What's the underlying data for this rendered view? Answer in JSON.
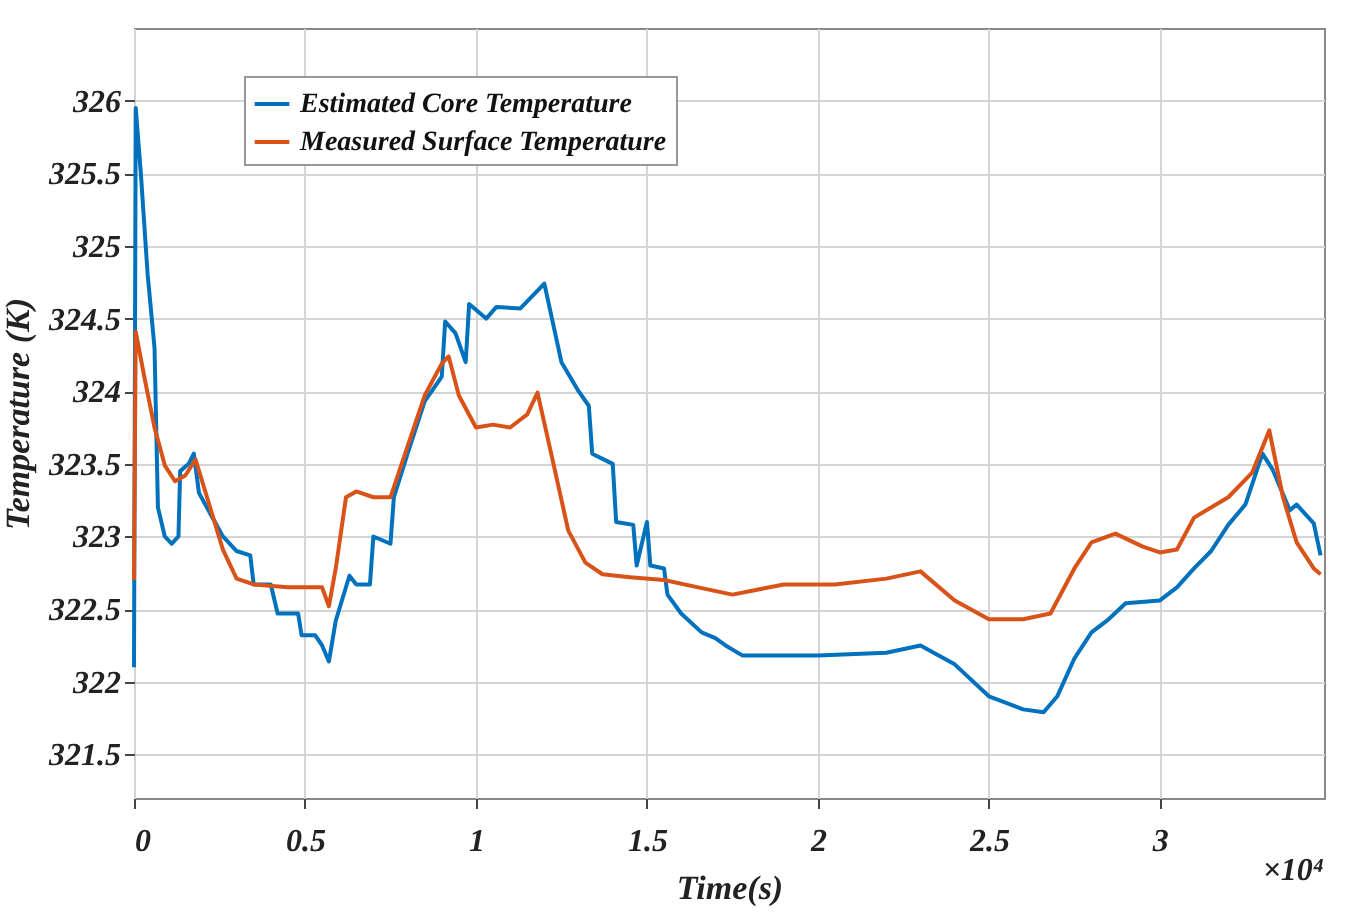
{
  "chart_data": {
    "type": "line",
    "xlabel": "Time(s)",
    "ylabel": "Temperature (K)",
    "annotations": [
      "×10⁴"
    ],
    "xlim": [
      0,
      3.48
    ],
    "ylim": [
      321.2,
      326.5
    ],
    "xticks": [
      0,
      0.5,
      1,
      1.5,
      2,
      2.5,
      3
    ],
    "yticks": [
      321.5,
      322,
      322.5,
      323,
      323.5,
      324,
      324.5,
      325,
      325.5,
      326
    ],
    "grid": true,
    "legend": "top left",
    "line_style": "solid",
    "marker": "none",
    "series": [
      {
        "name": "Estimated Core Temperature",
        "color": "#0072bd",
        "x": [
          0,
          0.005,
          0.02,
          0.04,
          0.06,
          0.07,
          0.09,
          0.11,
          0.13,
          0.135,
          0.16,
          0.175,
          0.19,
          0.22,
          0.26,
          0.3,
          0.34,
          0.35,
          0.4,
          0.42,
          0.48,
          0.49,
          0.53,
          0.55,
          0.57,
          0.59,
          0.63,
          0.65,
          0.69,
          0.7,
          0.75,
          0.76,
          0.8,
          0.85,
          0.9,
          0.91,
          0.94,
          0.97,
          0.98,
          1.03,
          1.06,
          1.13,
          1.2,
          1.25,
          1.3,
          1.33,
          1.34,
          1.4,
          1.41,
          1.46,
          1.47,
          1.5,
          1.51,
          1.55,
          1.56,
          1.6,
          1.66,
          1.7,
          1.73,
          1.78,
          2,
          2.2,
          2.3,
          2.4,
          2.5,
          2.6,
          2.66,
          2.7,
          2.75,
          2.8,
          2.85,
          2.9,
          3,
          3.05,
          3.1,
          3.15,
          3.2,
          3.25,
          3.3,
          3.33,
          3.38,
          3.4,
          3.45,
          3.47
        ],
        "values": [
          322.1,
          325.95,
          325.5,
          324.8,
          324.3,
          323.2,
          323.0,
          322.95,
          323.0,
          323.45,
          323.5,
          323.57,
          323.3,
          323.17,
          323.0,
          322.9,
          322.87,
          322.67,
          322.67,
          322.47,
          322.47,
          322.32,
          322.32,
          322.25,
          322.14,
          322.42,
          322.73,
          322.67,
          322.67,
          323.0,
          322.95,
          323.27,
          323.57,
          323.93,
          324.1,
          324.48,
          324.4,
          324.2,
          324.6,
          324.5,
          324.58,
          324.57,
          324.74,
          324.2,
          324.0,
          323.9,
          323.57,
          323.5,
          323.1,
          323.08,
          322.8,
          323.1,
          322.8,
          322.78,
          322.6,
          322.47,
          322.34,
          322.3,
          322.25,
          322.18,
          322.18,
          322.2,
          322.25,
          322.12,
          321.9,
          321.81,
          321.79,
          321.9,
          322.16,
          322.34,
          322.43,
          322.54,
          322.56,
          322.65,
          322.78,
          322.9,
          323.08,
          323.22,
          323.57,
          323.46,
          323.18,
          323.22,
          323.09,
          322.87
        ]
      },
      {
        "name": "Measured Surface Temperature",
        "color": "#d95319",
        "x": [
          0,
          0.005,
          0.03,
          0.06,
          0.09,
          0.12,
          0.15,
          0.18,
          0.22,
          0.26,
          0.3,
          0.35,
          0.45,
          0.55,
          0.57,
          0.59,
          0.62,
          0.65,
          0.7,
          0.75,
          0.8,
          0.85,
          0.9,
          0.92,
          0.95,
          1,
          1.05,
          1.1,
          1.15,
          1.18,
          1.22,
          1.27,
          1.32,
          1.37,
          1.45,
          1.55,
          1.65,
          1.75,
          1.9,
          2.05,
          2.2,
          2.3,
          2.4,
          2.5,
          2.6,
          2.68,
          2.75,
          2.8,
          2.87,
          2.95,
          3,
          3.05,
          3.1,
          3.2,
          3.27,
          3.32,
          3.36,
          3.4,
          3.45,
          3.47
        ],
        "values": [
          322.7,
          324.41,
          324.1,
          323.75,
          323.49,
          323.38,
          323.42,
          323.53,
          323.22,
          322.91,
          322.71,
          322.67,
          322.65,
          322.65,
          322.52,
          322.78,
          323.27,
          323.31,
          323.27,
          323.27,
          323.62,
          323.97,
          324.19,
          324.24,
          323.97,
          323.75,
          323.77,
          323.75,
          323.84,
          323.99,
          323.57,
          323.04,
          322.82,
          322.74,
          322.72,
          322.7,
          322.65,
          322.6,
          322.67,
          322.67,
          322.71,
          322.76,
          322.56,
          322.43,
          322.43,
          322.47,
          322.78,
          322.96,
          323.02,
          322.93,
          322.89,
          322.91,
          323.13,
          323.27,
          323.44,
          323.73,
          323.27,
          322.96,
          322.78,
          322.74
        ]
      }
    ]
  }
}
